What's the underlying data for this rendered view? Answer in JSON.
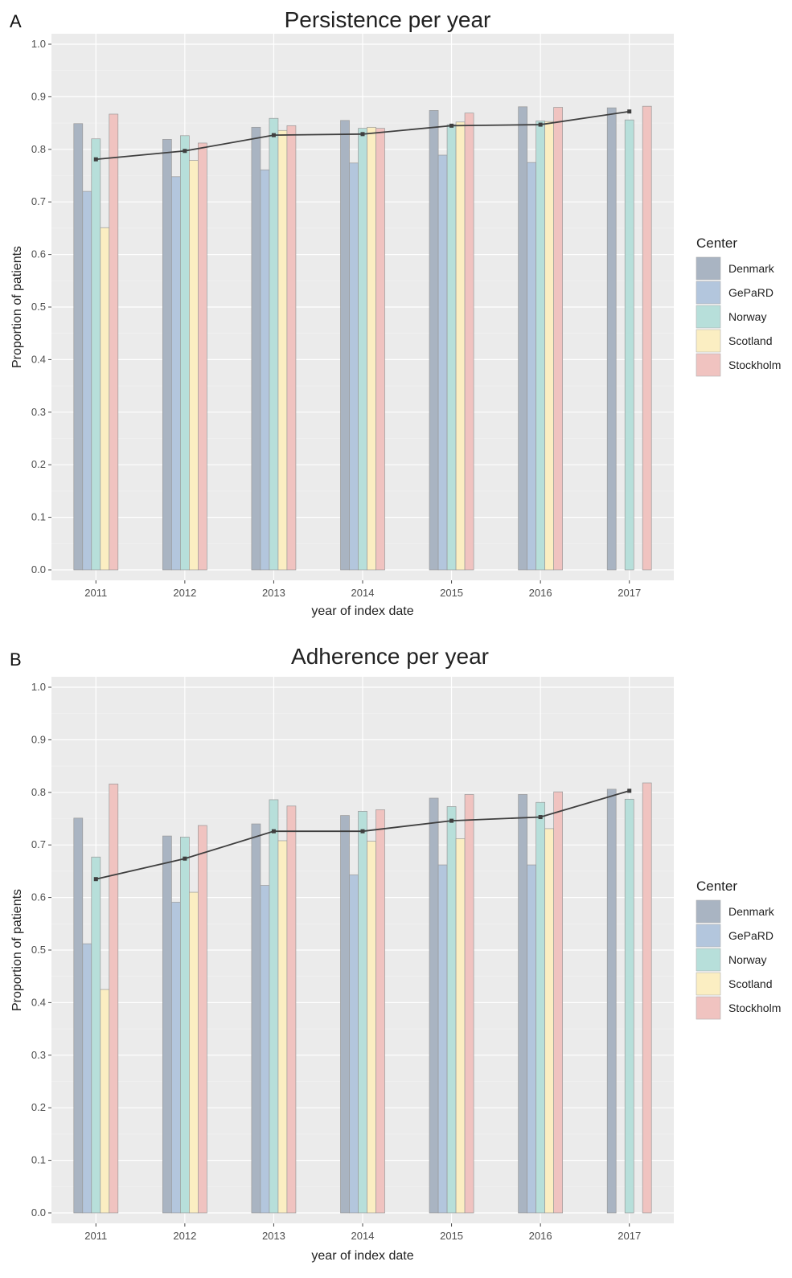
{
  "chart_data": [
    {
      "panel_label": "A",
      "type": "bar",
      "title": "Persistence per year",
      "xlabel": "year of index date",
      "ylabel": "Proportion of patients",
      "ylim": [
        0,
        1.0
      ],
      "yticks": [
        "0.0",
        "0.1",
        "0.2",
        "0.3",
        "0.4",
        "0.5",
        "0.6",
        "0.7",
        "0.8",
        "0.9",
        "1.0"
      ],
      "categories": [
        "2011",
        "2012",
        "2013",
        "2014",
        "2015",
        "2016",
        "2017"
      ],
      "grid": true,
      "legend": {
        "title": "Center",
        "position": "right"
      },
      "series": [
        {
          "name": "Denmark",
          "color": "#a9b4c2",
          "values": [
            0.849,
            0.819,
            0.842,
            0.855,
            0.874,
            0.881,
            0.879
          ]
        },
        {
          "name": "GePaRD",
          "color": "#b3c6dd",
          "values": [
            0.72,
            0.748,
            0.761,
            0.774,
            0.789,
            0.775,
            0
          ]
        },
        {
          "name": "Norway",
          "color": "#b7dfda",
          "values": [
            0.82,
            0.826,
            0.859,
            0.84,
            0.847,
            0.854,
            0.856
          ]
        },
        {
          "name": "Scotland",
          "color": "#fbeec2",
          "values": [
            0.651,
            0.779,
            0.836,
            0.842,
            0.852,
            0.853,
            0
          ]
        },
        {
          "name": "Stockholm",
          "color": "#f0c3c0",
          "values": [
            0.867,
            0.812,
            0.845,
            0.84,
            0.869,
            0.88,
            0.882
          ]
        }
      ],
      "line": {
        "color": "#3f3f3f",
        "values": [
          0.781,
          0.797,
          0.827,
          0.829,
          0.845,
          0.847,
          0.872
        ]
      }
    },
    {
      "panel_label": "B",
      "type": "bar",
      "title": "Adherence per year",
      "xlabel": "year of index date",
      "ylabel": "Proportion of patients",
      "ylim": [
        0,
        1.0
      ],
      "yticks": [
        "0.0",
        "0.1",
        "0.2",
        "0.3",
        "0.4",
        "0.5",
        "0.6",
        "0.7",
        "0.8",
        "0.9",
        "1.0"
      ],
      "categories": [
        "2011",
        "2012",
        "2013",
        "2014",
        "2015",
        "2016",
        "2017"
      ],
      "grid": true,
      "legend": {
        "title": "Center",
        "position": "right"
      },
      "series": [
        {
          "name": "Denmark",
          "color": "#a9b4c2",
          "values": [
            0.751,
            0.717,
            0.74,
            0.756,
            0.789,
            0.796,
            0.806
          ]
        },
        {
          "name": "GePaRD",
          "color": "#b3c6dd",
          "values": [
            0.512,
            0.591,
            0.623,
            0.643,
            0.662,
            0.662,
            0
          ]
        },
        {
          "name": "Norway",
          "color": "#b7dfda",
          "values": [
            0.677,
            0.715,
            0.786,
            0.764,
            0.773,
            0.781,
            0.787
          ]
        },
        {
          "name": "Scotland",
          "color": "#fbeec2",
          "values": [
            0.425,
            0.61,
            0.708,
            0.707,
            0.712,
            0.731,
            0
          ]
        },
        {
          "name": "Stockholm",
          "color": "#f0c3c0",
          "values": [
            0.816,
            0.737,
            0.774,
            0.767,
            0.796,
            0.801,
            0.818
          ]
        }
      ],
      "line": {
        "color": "#3f3f3f",
        "values": [
          0.635,
          0.674,
          0.726,
          0.726,
          0.746,
          0.753,
          0.803
        ]
      }
    }
  ]
}
